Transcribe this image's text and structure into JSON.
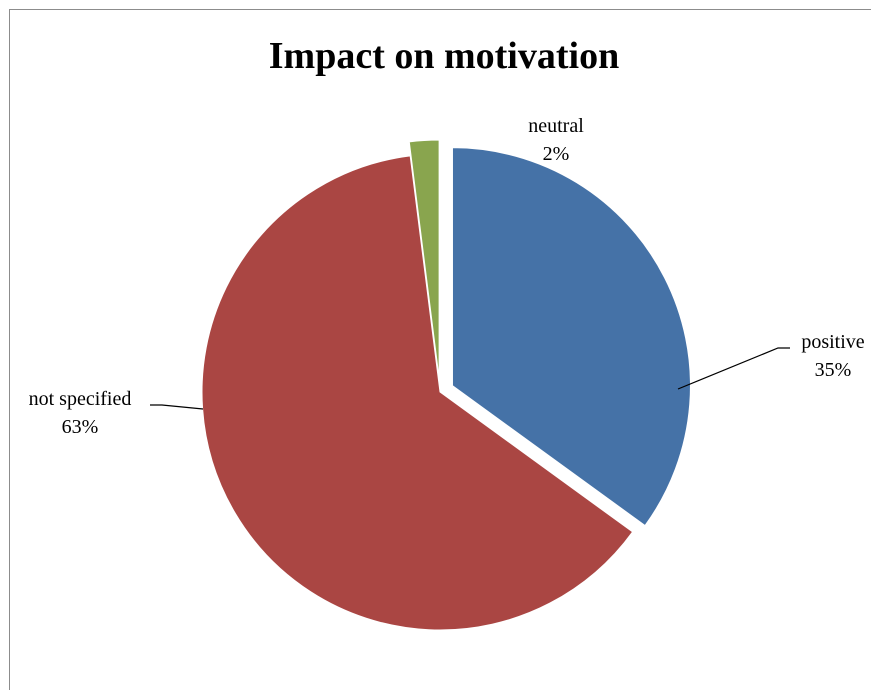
{
  "chart_data": {
    "type": "pie",
    "title": "Impact on motivation",
    "slices": [
      {
        "label": "positive",
        "value": 35,
        "pct_label": "35%",
        "color": "#4572A7",
        "exploded": true
      },
      {
        "label": "not specified",
        "value": 63,
        "pct_label": "63%",
        "color": "#AA4643",
        "exploded": false
      },
      {
        "label": "neutral",
        "value": 2,
        "pct_label": "2%",
        "color": "#89A54E",
        "exploded": true
      }
    ],
    "data_labels": "category and percentage, outside with leader lines"
  }
}
